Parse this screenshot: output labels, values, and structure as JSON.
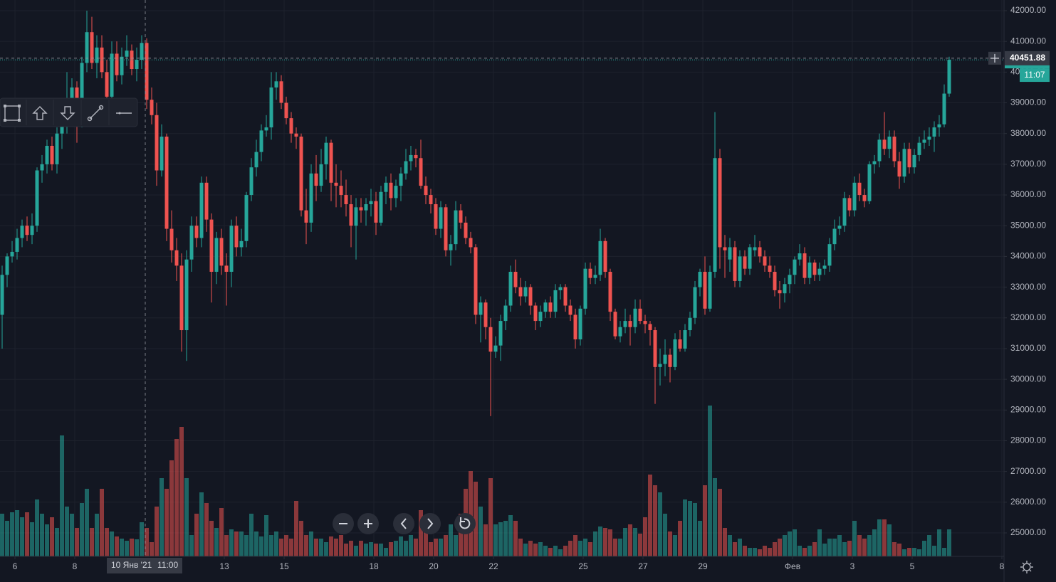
{
  "chart_data": {
    "type": "candlestick",
    "up_color": "#26a69a",
    "down_color": "#ef5350",
    "grid": true,
    "ylim": [
      24236,
      42347
    ],
    "yticks": [
      {
        "value": 42000,
        "label": "42000.00"
      },
      {
        "value": 41000,
        "label": "41000.00"
      },
      {
        "value": 40000,
        "label": "40000.00"
      },
      {
        "value": 39000,
        "label": "39000.00"
      },
      {
        "value": 38000,
        "label": "38000.00"
      },
      {
        "value": 37000,
        "label": "37000.00"
      },
      {
        "value": 36000,
        "label": "36000.00"
      },
      {
        "value": 35000,
        "label": "35000.00"
      },
      {
        "value": 34000,
        "label": "34000.00"
      },
      {
        "value": 33000,
        "label": "33000.00"
      },
      {
        "value": 32000,
        "label": "32000.00"
      },
      {
        "value": 31000,
        "label": "31000.00"
      },
      {
        "value": 30000,
        "label": "30000.00"
      },
      {
        "value": 29000,
        "label": "29000.00"
      },
      {
        "value": 28000,
        "label": "28000.00"
      },
      {
        "value": 27000,
        "label": "27000.00"
      },
      {
        "value": 26000,
        "label": "26000.00"
      },
      {
        "value": 25000,
        "label": "25000.00"
      }
    ],
    "xlim": [
      -0.43,
      201
    ],
    "xticks": [
      {
        "value": 2.57,
        "label": "6"
      },
      {
        "value": 14.57,
        "label": "8"
      },
      {
        "value": 44.57,
        "label": "13"
      },
      {
        "value": 56.57,
        "label": "15"
      },
      {
        "value": 74.57,
        "label": "18"
      },
      {
        "value": 86.57,
        "label": "20"
      },
      {
        "value": 98.57,
        "label": "22"
      },
      {
        "value": 116.57,
        "label": "25"
      },
      {
        "value": 128.57,
        "label": "27"
      },
      {
        "value": 140.57,
        "label": "29"
      },
      {
        "value": 158.57,
        "label": "Фев"
      },
      {
        "value": 170.57,
        "label": "3"
      },
      {
        "value": 182.57,
        "label": "5"
      },
      {
        "value": 200.57,
        "label": "8"
      }
    ],
    "crosshair": {
      "date_label": "10 Янв '21",
      "time_label": "11:00",
      "price": 40451.88
    },
    "last_price_countdown": "11:07",
    "ohlc": [
      [
        32100,
        33700,
        31000,
        33400
      ],
      [
        33400,
        34100,
        33000,
        34000
      ],
      [
        34000,
        34500,
        33800,
        34150
      ],
      [
        34150,
        34900,
        33900,
        34600
      ],
      [
        34600,
        35200,
        34300,
        35000
      ],
      [
        35000,
        35300,
        34500,
        34700
      ],
      [
        34700,
        35400,
        34400,
        35000
      ],
      [
        35000,
        36900,
        34800,
        36800
      ],
      [
        36800,
        37300,
        36400,
        37000
      ],
      [
        37000,
        37800,
        36700,
        37600
      ],
      [
        37600,
        37900,
        36800,
        37000
      ],
      [
        37000,
        38200,
        36700,
        38000
      ],
      [
        38000,
        38600,
        37500,
        38300
      ],
      [
        38300,
        40000,
        38000,
        39000
      ],
      [
        39000,
        39800,
        38700,
        39500
      ],
      [
        39500,
        39700,
        37700,
        38500
      ],
      [
        38500,
        40500,
        38200,
        40300
      ],
      [
        40300,
        42000,
        40000,
        41300
      ],
      [
        41300,
        41800,
        40100,
        40300
      ],
      [
        40300,
        41200,
        39800,
        40800
      ],
      [
        40800,
        41200,
        39800,
        40000
      ],
      [
        40000,
        40400,
        38900,
        39200
      ],
      [
        39200,
        41000,
        39000,
        40600
      ],
      [
        40600,
        41000,
        39700,
        39900
      ],
      [
        39900,
        40800,
        39600,
        40500
      ],
      [
        40500,
        41200,
        40200,
        40700
      ],
      [
        40700,
        40900,
        39900,
        40100
      ],
      [
        40100,
        40800,
        39700,
        40400
      ],
      [
        40400,
        41200,
        40100,
        40950
      ],
      [
        40950,
        41100,
        38800,
        39100
      ],
      [
        39100,
        39500,
        38300,
        38600
      ],
      [
        38600,
        39000,
        36300,
        36800
      ],
      [
        36800,
        38300,
        36600,
        37900
      ],
      [
        37900,
        38000,
        34500,
        34900
      ],
      [
        34900,
        35500,
        33800,
        34200
      ],
      [
        34200,
        34600,
        33200,
        33700
      ],
      [
        33700,
        34100,
        30900,
        31600
      ],
      [
        31600,
        34200,
        30600,
        33900
      ],
      [
        33900,
        35300,
        33500,
        35000
      ],
      [
        35000,
        35300,
        34300,
        34600
      ],
      [
        34600,
        36600,
        34300,
        36400
      ],
      [
        36400,
        36600,
        34800,
        35200
      ],
      [
        35200,
        35400,
        32500,
        33500
      ],
      [
        33500,
        34800,
        33100,
        34600
      ],
      [
        34600,
        34900,
        33400,
        33700
      ],
      [
        33700,
        34100,
        32400,
        33500
      ],
      [
        33500,
        35200,
        33000,
        35000
      ],
      [
        35000,
        35300,
        34000,
        34300
      ],
      [
        34300,
        34900,
        34000,
        34500
      ],
      [
        34500,
        36100,
        34300,
        36000
      ],
      [
        36000,
        37200,
        35800,
        36900
      ],
      [
        36900,
        37800,
        36600,
        37400
      ],
      [
        37400,
        38300,
        37100,
        38100
      ],
      [
        38100,
        38600,
        37900,
        38200
      ],
      [
        38200,
        40000,
        37800,
        39500
      ],
      [
        39500,
        40000,
        39100,
        39700
      ],
      [
        39700,
        39900,
        38800,
        39000
      ],
      [
        39000,
        39200,
        38300,
        38500
      ],
      [
        38500,
        38700,
        37700,
        38000
      ],
      [
        38000,
        38200,
        37500,
        37900
      ],
      [
        37900,
        38000,
        35300,
        35500
      ],
      [
        35500,
        36200,
        34400,
        35100
      ],
      [
        35100,
        37000,
        34800,
        36700
      ],
      [
        36700,
        37300,
        35800,
        36300
      ],
      [
        36300,
        37500,
        36100,
        37000
      ],
      [
        37000,
        37900,
        36500,
        37700
      ],
      [
        37700,
        37800,
        35800,
        36400
      ],
      [
        36400,
        37000,
        35600,
        36300
      ],
      [
        36300,
        36800,
        35600,
        36000
      ],
      [
        36000,
        36500,
        35300,
        35700
      ],
      [
        35700,
        36000,
        34300,
        35000
      ],
      [
        35000,
        35900,
        33900,
        35600
      ],
      [
        35600,
        35900,
        35100,
        35500
      ],
      [
        35500,
        35900,
        35000,
        35700
      ],
      [
        35700,
        36200,
        35300,
        35800
      ],
      [
        35800,
        36100,
        34700,
        35100
      ],
      [
        35100,
        36300,
        35000,
        36100
      ],
      [
        36100,
        36600,
        35700,
        36400
      ],
      [
        36400,
        36700,
        35500,
        35900
      ],
      [
        35900,
        36500,
        35600,
        36300
      ],
      [
        36300,
        36900,
        35800,
        36700
      ],
      [
        36700,
        37500,
        36500,
        37100
      ],
      [
        37100,
        37600,
        36800,
        37300
      ],
      [
        37300,
        37500,
        36900,
        37200
      ],
      [
        37200,
        37800,
        36200,
        36300
      ],
      [
        36300,
        36600,
        35700,
        36000
      ],
      [
        36000,
        36200,
        35400,
        35700
      ],
      [
        35700,
        35900,
        34700,
        34900
      ],
      [
        34900,
        35800,
        34600,
        35600
      ],
      [
        35600,
        35700,
        34000,
        34200
      ],
      [
        34200,
        34700,
        33700,
        34400
      ],
      [
        34400,
        35800,
        34200,
        35500
      ],
      [
        35500,
        35700,
        34900,
        35100
      ],
      [
        35100,
        35300,
        34400,
        34600
      ],
      [
        34600,
        34800,
        34100,
        34300
      ],
      [
        34300,
        34400,
        31800,
        32100
      ],
      [
        32100,
        32700,
        31200,
        32500
      ],
      [
        32500,
        32600,
        31300,
        31700
      ],
      [
        31700,
        32000,
        28800,
        30900
      ],
      [
        30900,
        31400,
        30700,
        31100
      ],
      [
        31100,
        32100,
        30600,
        31900
      ],
      [
        31900,
        32600,
        31600,
        32400
      ],
      [
        32400,
        33700,
        32200,
        33500
      ],
      [
        33500,
        33900,
        32800,
        33000
      ],
      [
        33000,
        33300,
        32400,
        32700
      ],
      [
        32700,
        33200,
        32500,
        33000
      ],
      [
        33000,
        33100,
        32100,
        32400
      ],
      [
        32400,
        32500,
        31600,
        31900
      ],
      [
        31900,
        32400,
        31700,
        32200
      ],
      [
        32200,
        32600,
        32000,
        32500
      ],
      [
        32500,
        32700,
        32000,
        32200
      ],
      [
        32200,
        33100,
        32000,
        32900
      ],
      [
        32900,
        33100,
        32600,
        33000
      ],
      [
        33000,
        33100,
        32200,
        32400
      ],
      [
        32400,
        32600,
        31900,
        32100
      ],
      [
        32100,
        32300,
        31000,
        31300
      ],
      [
        31300,
        32400,
        31100,
        32300
      ],
      [
        32300,
        33800,
        32100,
        33600
      ],
      [
        33600,
        33800,
        33100,
        33300
      ],
      [
        33300,
        33700,
        33100,
        33400
      ],
      [
        33400,
        34900,
        33200,
        34500
      ],
      [
        34500,
        34600,
        33300,
        33500
      ],
      [
        33500,
        33600,
        31900,
        32200
      ],
      [
        32200,
        32300,
        31300,
        31400
      ],
      [
        31400,
        31900,
        31200,
        31700
      ],
      [
        31700,
        32300,
        31500,
        31900
      ],
      [
        31900,
        32100,
        31100,
        31700
      ],
      [
        31700,
        32600,
        31500,
        32300
      ],
      [
        32300,
        32600,
        31800,
        31900
      ],
      [
        31900,
        32100,
        31500,
        31800
      ],
      [
        31800,
        31900,
        31100,
        31600
      ],
      [
        31600,
        31700,
        29200,
        30400
      ],
      [
        30400,
        31000,
        29800,
        30500
      ],
      [
        30500,
        31300,
        30100,
        30800
      ],
      [
        30800,
        31000,
        29900,
        30400
      ],
      [
        30400,
        31500,
        30300,
        31300
      ],
      [
        31300,
        31600,
        30900,
        31000
      ],
      [
        31000,
        31800,
        30900,
        31600
      ],
      [
        31600,
        32200,
        31400,
        32000
      ],
      [
        32000,
        33200,
        31800,
        33000
      ],
      [
        33000,
        33600,
        32700,
        33500
      ],
      [
        33500,
        34000,
        32100,
        32300
      ],
      [
        32300,
        33700,
        32200,
        33500
      ],
      [
        33500,
        38700,
        33300,
        37200
      ],
      [
        37200,
        37500,
        33600,
        34300
      ],
      [
        34300,
        34700,
        33300,
        34200
      ],
      [
        33900,
        34600,
        33500,
        34300
      ],
      [
        34300,
        34500,
        33000,
        33200
      ],
      [
        33200,
        34200,
        33000,
        34000
      ],
      [
        34000,
        34200,
        33400,
        33600
      ],
      [
        33600,
        34400,
        33400,
        34300
      ],
      [
        34200,
        34700,
        34000,
        34300
      ],
      [
        34300,
        34500,
        33800,
        34000
      ],
      [
        34000,
        34200,
        33500,
        33700
      ],
      [
        33700,
        34000,
        33300,
        33500
      ],
      [
        33500,
        33700,
        32700,
        32900
      ],
      [
        32900,
        33200,
        32300,
        32800
      ],
      [
        32800,
        33300,
        32500,
        33100
      ],
      [
        33100,
        33600,
        32800,
        33400
      ],
      [
        33400,
        34000,
        33100,
        33900
      ],
      [
        33900,
        34400,
        33700,
        34100
      ],
      [
        34100,
        34300,
        33100,
        33300
      ],
      [
        33300,
        34000,
        33100,
        33800
      ],
      [
        33800,
        33900,
        33200,
        33400
      ],
      [
        33400,
        33800,
        33200,
        33600
      ],
      [
        33600,
        33900,
        33400,
        33700
      ],
      [
        33700,
        34600,
        33500,
        34400
      ],
      [
        34400,
        35200,
        34200,
        34900
      ],
      [
        34900,
        35300,
        34700,
        35000
      ],
      [
        35000,
        36100,
        34800,
        35900
      ],
      [
        35900,
        36000,
        35300,
        35500
      ],
      [
        35500,
        36600,
        35300,
        36400
      ],
      [
        36400,
        36700,
        35800,
        36000
      ],
      [
        36000,
        36200,
        35600,
        35800
      ],
      [
        35800,
        37100,
        35700,
        37000
      ],
      [
        37000,
        37300,
        36700,
        37100
      ],
      [
        37100,
        38000,
        36900,
        37800
      ],
      [
        37800,
        38700,
        37300,
        37500
      ],
      [
        37500,
        38100,
        37200,
        37900
      ],
      [
        37900,
        38100,
        36900,
        37100
      ],
      [
        37100,
        37400,
        36200,
        36600
      ],
      [
        36600,
        37700,
        36400,
        37500
      ],
      [
        37500,
        37700,
        36700,
        36900
      ],
      [
        36900,
        37500,
        36700,
        37300
      ],
      [
        37300,
        37900,
        37100,
        37700
      ],
      [
        37700,
        38100,
        37500,
        37800
      ],
      [
        37800,
        38200,
        37600,
        37900
      ],
      [
        37900,
        38400,
        37400,
        38200
      ],
      [
        38200,
        38600,
        37900,
        38300
      ],
      [
        38300,
        39600,
        38200,
        39300
      ],
      [
        39300,
        40500,
        39200,
        40400
      ]
    ],
    "volume": [
      60,
      50,
      62,
      65,
      55,
      62,
      48,
      80,
      60,
      45,
      55,
      40,
      170,
      70,
      60,
      40,
      75,
      95,
      40,
      60,
      95,
      40,
      35,
      28,
      25,
      22,
      25,
      24,
      48,
      40,
      20,
      70,
      110,
      95,
      135,
      165,
      182,
      110,
      30,
      60,
      90,
      75,
      50,
      40,
      68,
      30,
      38,
      35,
      35,
      30,
      60,
      35,
      28,
      58,
      30,
      35,
      25,
      30,
      25,
      78,
      50,
      30,
      35,
      25,
      25,
      20,
      28,
      25,
      30,
      18,
      22,
      15,
      22,
      18,
      20,
      18,
      18,
      12,
      20,
      22,
      28,
      22,
      30,
      25,
      65,
      40,
      20,
      25,
      25,
      30,
      45,
      30,
      60,
      95,
      120,
      105,
      70,
      45,
      110,
      45,
      48,
      50,
      58,
      50,
      25,
      18,
      22,
      18,
      20,
      15,
      12,
      15,
      10,
      15,
      22,
      30,
      22,
      25,
      20,
      35,
      42,
      40,
      38,
      25,
      25,
      40,
      45,
      40,
      32,
      55,
      115,
      100,
      90,
      60,
      35,
      30,
      50,
      80,
      78,
      75,
      50,
      100,
      212,
      110,
      95,
      40,
      30,
      20,
      25,
      15,
      12,
      12,
      10,
      15,
      12,
      20,
      25,
      30,
      35,
      38,
      15,
      12,
      15,
      20,
      38,
      18,
      25,
      25,
      30,
      20,
      22,
      50,
      30,
      25,
      30,
      38,
      52,
      52,
      45,
      20,
      18,
      10,
      12,
      12,
      10,
      22,
      30,
      15,
      38,
      12,
      38
    ]
  }
}
